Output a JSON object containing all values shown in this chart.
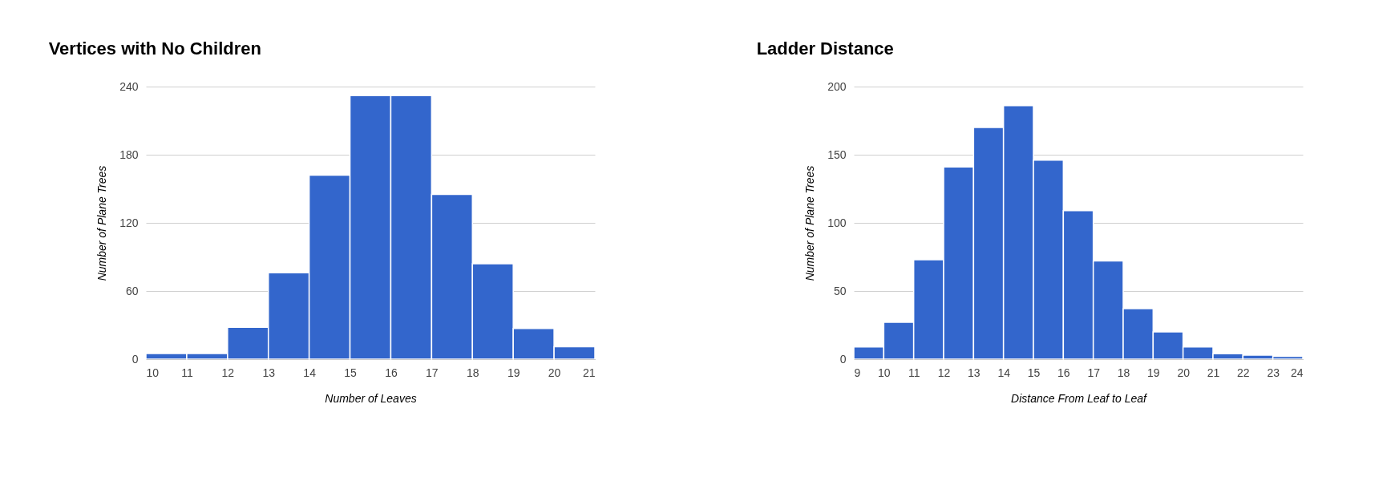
{
  "chart_data": [
    {
      "type": "histogram",
      "title": "Vertices with No Children",
      "xlabel": "Number of Leaves",
      "ylabel": "Number of Plane Trees",
      "bins": [
        10,
        11,
        12,
        13,
        14,
        15,
        16,
        17,
        18,
        19,
        20,
        21
      ],
      "values": [
        5,
        5,
        28,
        76,
        162,
        232,
        232,
        145,
        84,
        27,
        11
      ],
      "color": "#3366cc",
      "xlim": [
        10,
        21
      ],
      "xticks": [
        10,
        11,
        12,
        13,
        14,
        15,
        16,
        17,
        18,
        19,
        20,
        21
      ],
      "ylim": [
        0,
        240
      ],
      "yticks": [
        0,
        60,
        120,
        180,
        240
      ],
      "grid": "y"
    },
    {
      "type": "histogram",
      "title": "Ladder Distance",
      "xlabel": "Distance From Leaf to Leaf",
      "ylabel": "Number of Plane Trees",
      "bins": [
        9,
        10,
        11,
        12,
        13,
        14,
        15,
        16,
        17,
        18,
        19,
        20,
        21,
        22,
        23,
        24
      ],
      "values": [
        9,
        27,
        73,
        141,
        170,
        186,
        146,
        109,
        72,
        37,
        20,
        9,
        4,
        3,
        2
      ],
      "color": "#3366cc",
      "xlim": [
        9,
        24
      ],
      "xticks": [
        9,
        10,
        11,
        12,
        13,
        14,
        15,
        16,
        17,
        18,
        19,
        20,
        21,
        22,
        23,
        24
      ],
      "ylim": [
        0,
        200
      ],
      "yticks": [
        0,
        50,
        100,
        150,
        200
      ],
      "grid": "y"
    }
  ]
}
